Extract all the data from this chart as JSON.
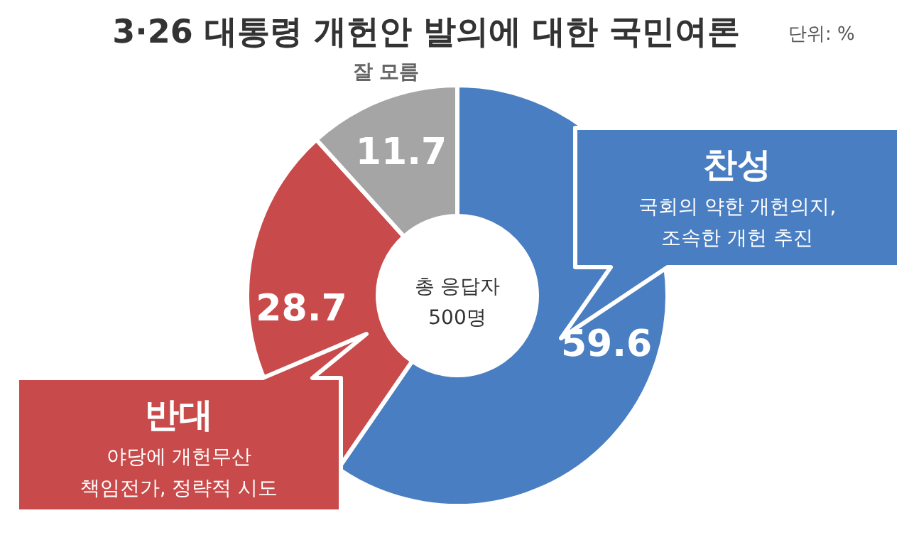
{
  "chart_data": {
    "type": "donut",
    "title": "3·26 대통령 개헌안 발의에 대한 국민여론",
    "categories": [
      "찬성",
      "반대",
      "잘 모름"
    ],
    "values": [
      59.6,
      28.7,
      11.7
    ],
    "colors": [
      "#4a7ec2",
      "#c94a4a",
      "#a5a5a5"
    ],
    "data_labels": true,
    "annotations": [
      "단위: %",
      "총 응답자",
      "500명",
      "국회의 약한 개헌의지,",
      "조속한 개헌 추진",
      "야당에 개헌무산",
      "책임전가, 정략적 시도"
    ]
  }
}
